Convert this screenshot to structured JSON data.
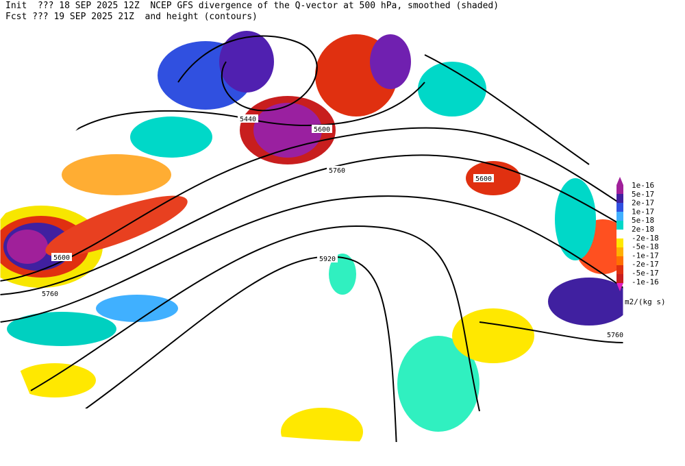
{
  "header": {
    "line1": "Init  ??? 18 SEP 2025 12Z  NCEP GFS divergence of the Q-vector at 500 hPa, smoothed (shaded)",
    "line2": "Fcst ??? 19 SEP 2025 21Z  and height (contours)"
  },
  "contour_labels": [
    "5440",
    "5600",
    "5760",
    "5600",
    "5600",
    "5760",
    "5920",
    "5760"
  ],
  "colorbar": {
    "labels": [
      "1e-16",
      "5e-17",
      "2e-17",
      "1e-17",
      "5e-18",
      "2e-18",
      "-2e-18",
      "-5e-18",
      "-1e-17",
      "-2e-17",
      "-5e-17",
      "-1e-16"
    ],
    "units": "m2/(kg s)"
  }
}
